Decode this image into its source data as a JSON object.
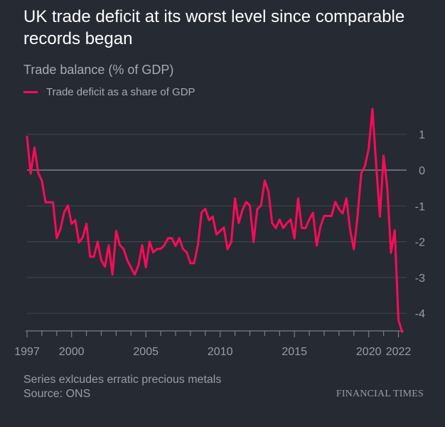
{
  "chart_data": {
    "type": "line",
    "title": "UK trade deficit at its worst level since comparable records began",
    "subtitle": "Trade balance (% of GDP)",
    "legend": "top-left",
    "series": [
      {
        "name": "Trade deficit as a share of GDP",
        "color": "#ff0a5a",
        "x": [
          1997.0,
          1997.25,
          1997.5,
          1997.75,
          1998.0,
          1998.25,
          1998.5,
          1998.75,
          1999.0,
          1999.25,
          1999.5,
          1999.75,
          2000.0,
          2000.25,
          2000.5,
          2000.75,
          2001.0,
          2001.25,
          2001.5,
          2001.75,
          2002.0,
          2002.25,
          2002.5,
          2002.75,
          2003.0,
          2003.25,
          2003.5,
          2003.75,
          2004.0,
          2004.25,
          2004.5,
          2004.75,
          2005.0,
          2005.25,
          2005.5,
          2005.75,
          2006.0,
          2006.25,
          2006.5,
          2006.75,
          2007.0,
          2007.25,
          2007.5,
          2007.75,
          2008.0,
          2008.25,
          2008.5,
          2008.75,
          2009.0,
          2009.25,
          2009.5,
          2009.75,
          2010.0,
          2010.25,
          2010.5,
          2010.75,
          2011.0,
          2011.25,
          2011.5,
          2011.75,
          2012.0,
          2012.25,
          2012.5,
          2012.75,
          2013.0,
          2013.25,
          2013.5,
          2013.75,
          2014.0,
          2014.25,
          2014.5,
          2014.75,
          2015.0,
          2015.25,
          2015.5,
          2015.75,
          2016.0,
          2016.25,
          2016.5,
          2016.75,
          2017.0,
          2017.25,
          2017.5,
          2017.75,
          2018.0,
          2018.25,
          2018.5,
          2018.75,
          2019.0,
          2019.25,
          2019.5,
          2019.75,
          2020.0,
          2020.25,
          2020.5,
          2020.75,
          2021.0,
          2021.25,
          2021.5,
          2021.75,
          2022.0,
          2022.25
        ],
        "values": [
          0.93,
          -0.1,
          0.63,
          -0.07,
          -0.3,
          -0.9,
          -0.9,
          -0.9,
          -1.9,
          -1.65,
          -1.18,
          -0.99,
          -1.5,
          -1.4,
          -2.02,
          -1.88,
          -1.5,
          -2.42,
          -2.42,
          -2.0,
          -2.52,
          -2.7,
          -2.1,
          -2.92,
          -1.7,
          -2.1,
          -2.2,
          -2.52,
          -2.72,
          -2.92,
          -2.65,
          -2.1,
          -2.72,
          -2.0,
          -2.3,
          -2.2,
          -2.2,
          -2.1,
          -1.9,
          -1.9,
          -2.12,
          -1.9,
          -2.2,
          -2.3,
          -2.6,
          -2.6,
          -2.1,
          -1.18,
          -1.08,
          -1.4,
          -1.3,
          -1.8,
          -1.7,
          -1.6,
          -2.21,
          -2.01,
          -0.79,
          -1.48,
          -1.12,
          -0.89,
          -0.99,
          -2.01,
          -1.09,
          -0.99,
          -0.29,
          -0.59,
          -1.48,
          -1.62,
          -1.38,
          -1.62,
          -1.48,
          -1.38,
          -1.91,
          -0.79,
          -1.62,
          -1.62,
          -1.38,
          -1.19,
          -2.11,
          -1.58,
          -1.28,
          -1.28,
          -1.28,
          -0.89,
          -1.09,
          -1.21,
          -0.79,
          -1.68,
          -2.21,
          -1.28,
          -0.09,
          0.12,
          0.6,
          1.71,
          0.17,
          -1.3,
          0.4,
          -0.49,
          -2.31,
          -1.68,
          -4.19,
          -4.52
        ]
      }
    ],
    "xlim": [
      1997,
      2022.25
    ],
    "ylim": [
      -4.5,
      1.8
    ],
    "x_ticks": [
      1997,
      1998,
      1999,
      2000,
      2001,
      2002,
      2003,
      2004,
      2005,
      2006,
      2007,
      2008,
      2009,
      2010,
      2011,
      2012,
      2013,
      2014,
      2015,
      2016,
      2017,
      2018,
      2019,
      2020,
      2021,
      2022
    ],
    "x_tick_labels": [
      "1997",
      "2000",
      "2005",
      "2010",
      "2015",
      "2020",
      "2022"
    ],
    "x_tick_label_values": [
      1997,
      2000,
      2005,
      2010,
      2015,
      2020,
      2022
    ],
    "y_ticks": [
      1,
      0,
      -1,
      -2,
      -3,
      -4
    ],
    "y_tick_labels": [
      "1",
      "0",
      "-1",
      "-2",
      "-3",
      "-4"
    ],
    "y_axis_side": "right",
    "grid": true,
    "footnote": "Series exlcudes erratic precious metals",
    "source": "Source: ONS"
  },
  "colors": {
    "background": "#262a33",
    "line": "#ff0a5a",
    "grid": "#3d414a",
    "zero_line": "#7c7f86",
    "text": "#9a9da3"
  },
  "branding": {
    "logo_text": "FINANCIAL TIMES"
  }
}
